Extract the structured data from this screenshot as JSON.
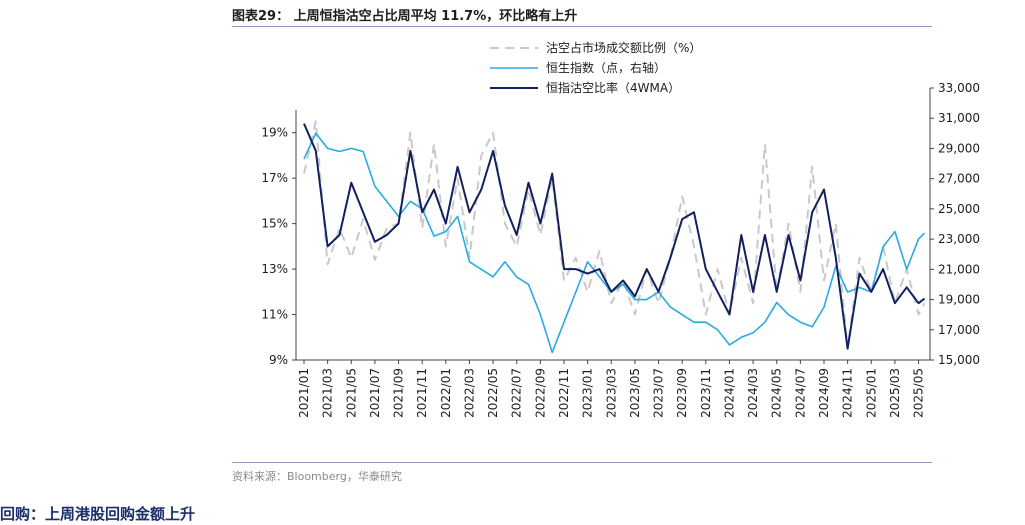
{
  "header": {
    "title": "图表29：  上周恒指沽空占比周平均 11.7%，环比略有上升"
  },
  "footer": {
    "source": "资料来源：Bloomberg，华泰研究",
    "next_heading": "回购：上周港股回购金额上升"
  },
  "colors": {
    "short_ratio": "#c9c9c9",
    "hsi": "#29abe2",
    "short_ratio_4wma": "#12205e",
    "axis": "#444444"
  },
  "chart_data": {
    "type": "line",
    "title": "",
    "x_tick_labels": [
      "2021/01",
      "2021/03",
      "2021/05",
      "2021/07",
      "2021/09",
      "2021/11",
      "2022/01",
      "2022/03",
      "2022/05",
      "2022/07",
      "2022/09",
      "2022/11",
      "2023/01",
      "2023/03",
      "2023/05",
      "2023/07",
      "2023/09",
      "2023/11",
      "2024/01",
      "2024/03",
      "2024/05",
      "2024/07",
      "2024/09",
      "2024/11",
      "2025/01",
      "2025/03",
      "2025/05"
    ],
    "left_axis": {
      "ylim": [
        9,
        20
      ],
      "tick_values": [
        9,
        11,
        13,
        15,
        17,
        19
      ],
      "tick_labels": [
        "9%",
        "11%",
        "13%",
        "15%",
        "17%",
        "19%"
      ]
    },
    "right_axis": {
      "ylim": [
        15000,
        33000
      ],
      "tick_values": [
        15000,
        17000,
        19000,
        21000,
        23000,
        25000,
        27000,
        29000,
        31000,
        33000
      ],
      "tick_labels": [
        "15,000",
        "17,000",
        "19,000",
        "21,000",
        "23,000",
        "25,000",
        "27,000",
        "29,000",
        "31,000",
        "33,000"
      ]
    },
    "legend_position": "top",
    "series": [
      {
        "name": "沽空占市场成交额比例（%）",
        "axis": "left",
        "style": "dashed",
        "points": [
          [
            "2021/01",
            17.2
          ],
          [
            "2021/02",
            19.5
          ],
          [
            "2021/03",
            13.2
          ],
          [
            "2021/04",
            14.8
          ],
          [
            "2021/05",
            13.5
          ],
          [
            "2021/06",
            15.2
          ],
          [
            "2021/07",
            13.4
          ],
          [
            "2021/08",
            14.8
          ],
          [
            "2021/09",
            15.0
          ],
          [
            "2021/10",
            19.0
          ],
          [
            "2021/11",
            14.8
          ],
          [
            "2021/12",
            18.5
          ],
          [
            "2022/01",
            14.0
          ],
          [
            "2022/02",
            17.0
          ],
          [
            "2022/03",
            13.5
          ],
          [
            "2022/04",
            18.0
          ],
          [
            "2022/05",
            19.0
          ],
          [
            "2022/06",
            15.0
          ],
          [
            "2022/07",
            14.0
          ],
          [
            "2022/08",
            16.5
          ],
          [
            "2022/09",
            14.5
          ],
          [
            "2022/10",
            17.0
          ],
          [
            "2022/11",
            12.5
          ],
          [
            "2022/12",
            13.5
          ],
          [
            "2023/01",
            12.0
          ],
          [
            "2023/02",
            13.8
          ],
          [
            "2023/03",
            11.5
          ],
          [
            "2023/04",
            12.5
          ],
          [
            "2023/05",
            11.0
          ],
          [
            "2023/06",
            13.0
          ],
          [
            "2023/07",
            11.5
          ],
          [
            "2023/08",
            13.5
          ],
          [
            "2023/09",
            16.2
          ],
          [
            "2023/10",
            14.0
          ],
          [
            "2023/11",
            11.0
          ],
          [
            "2023/12",
            13.0
          ],
          [
            "2024/01",
            11.0
          ],
          [
            "2024/02",
            13.5
          ],
          [
            "2024/03",
            11.5
          ],
          [
            "2024/04",
            18.5
          ],
          [
            "2024/05",
            12.0
          ],
          [
            "2024/06",
            15.0
          ],
          [
            "2024/07",
            12.0
          ],
          [
            "2024/08",
            17.5
          ],
          [
            "2024/09",
            12.5
          ],
          [
            "2024/10",
            15.0
          ],
          [
            "2024/11",
            9.5
          ],
          [
            "2024/12",
            13.5
          ],
          [
            "2025/01",
            12.0
          ],
          [
            "2025/02",
            14.0
          ],
          [
            "2025/03",
            11.5
          ],
          [
            "2025/04",
            13.0
          ],
          [
            "2025/05",
            11.0
          ],
          [
            "2025/05",
            11.5
          ]
        ]
      },
      {
        "name": "恒生指数（点，右轴）",
        "axis": "right",
        "style": "solid",
        "points": [
          [
            "2021/01",
            28300
          ],
          [
            "2021/02",
            30000
          ],
          [
            "2021/03",
            29000
          ],
          [
            "2021/04",
            28800
          ],
          [
            "2021/05",
            29000
          ],
          [
            "2021/06",
            28800
          ],
          [
            "2021/07",
            26500
          ],
          [
            "2021/08",
            25500
          ],
          [
            "2021/09",
            24500
          ],
          [
            "2021/10",
            25500
          ],
          [
            "2021/11",
            25000
          ],
          [
            "2021/12",
            23200
          ],
          [
            "2022/01",
            23500
          ],
          [
            "2022/02",
            24500
          ],
          [
            "2022/03",
            21500
          ],
          [
            "2022/04",
            21000
          ],
          [
            "2022/05",
            20500
          ],
          [
            "2022/06",
            21500
          ],
          [
            "2022/07",
            20500
          ],
          [
            "2022/08",
            20000
          ],
          [
            "2022/09",
            18000
          ],
          [
            "2022/10",
            15500
          ],
          [
            "2022/11",
            17500
          ],
          [
            "2022/12",
            19500
          ],
          [
            "2023/01",
            21500
          ],
          [
            "2023/02",
            20500
          ],
          [
            "2023/03",
            19500
          ],
          [
            "2023/04",
            20000
          ],
          [
            "2023/05",
            19000
          ],
          [
            "2023/06",
            19000
          ],
          [
            "2023/07",
            19500
          ],
          [
            "2023/08",
            18500
          ],
          [
            "2023/09",
            18000
          ],
          [
            "2023/10",
            17500
          ],
          [
            "2023/11",
            17500
          ],
          [
            "2023/12",
            17000
          ],
          [
            "2024/01",
            16000
          ],
          [
            "2024/02",
            16500
          ],
          [
            "2024/03",
            16800
          ],
          [
            "2024/04",
            17500
          ],
          [
            "2024/05",
            18800
          ],
          [
            "2024/06",
            18000
          ],
          [
            "2024/07",
            17500
          ],
          [
            "2024/08",
            17200
          ],
          [
            "2024/09",
            18500
          ],
          [
            "2024/10",
            21200
          ],
          [
            "2024/11",
            19500
          ],
          [
            "2024/12",
            19800
          ],
          [
            "2025/01",
            19500
          ],
          [
            "2025/02",
            22500
          ],
          [
            "2025/03",
            23500
          ],
          [
            "2025/04",
            21000
          ],
          [
            "2025/05",
            23000
          ],
          [
            "2025/05",
            23400
          ]
        ]
      },
      {
        "name": "恒指沽空比率（4WMA）",
        "axis": "left",
        "style": "solid",
        "points": [
          [
            "2021/01",
            19.4
          ],
          [
            "2021/02",
            18.2
          ],
          [
            "2021/03",
            14.0
          ],
          [
            "2021/04",
            14.5
          ],
          [
            "2021/05",
            16.8
          ],
          [
            "2021/06",
            15.5
          ],
          [
            "2021/07",
            14.2
          ],
          [
            "2021/08",
            14.5
          ],
          [
            "2021/09",
            15.0
          ],
          [
            "2021/10",
            18.2
          ],
          [
            "2021/11",
            15.5
          ],
          [
            "2021/12",
            16.5
          ],
          [
            "2022/01",
            15.0
          ],
          [
            "2022/02",
            17.5
          ],
          [
            "2022/03",
            15.5
          ],
          [
            "2022/04",
            16.5
          ],
          [
            "2022/05",
            18.2
          ],
          [
            "2022/06",
            15.8
          ],
          [
            "2022/07",
            14.5
          ],
          [
            "2022/08",
            16.8
          ],
          [
            "2022/09",
            15.0
          ],
          [
            "2022/10",
            17.2
          ],
          [
            "2022/11",
            13.0
          ],
          [
            "2022/12",
            13.0
          ],
          [
            "2023/01",
            12.8
          ],
          [
            "2023/02",
            13.0
          ],
          [
            "2023/03",
            12.0
          ],
          [
            "2023/04",
            12.5
          ],
          [
            "2023/05",
            11.8
          ],
          [
            "2023/06",
            13.0
          ],
          [
            "2023/07",
            12.0
          ],
          [
            "2023/08",
            13.5
          ],
          [
            "2023/09",
            15.2
          ],
          [
            "2023/10",
            15.5
          ],
          [
            "2023/11",
            13.0
          ],
          [
            "2023/12",
            12.0
          ],
          [
            "2024/01",
            11.0
          ],
          [
            "2024/02",
            14.5
          ],
          [
            "2024/03",
            12.0
          ],
          [
            "2024/04",
            14.5
          ],
          [
            "2024/05",
            12.0
          ],
          [
            "2024/06",
            14.5
          ],
          [
            "2024/07",
            12.5
          ],
          [
            "2024/08",
            15.5
          ],
          [
            "2024/09",
            16.5
          ],
          [
            "2024/10",
            13.5
          ],
          [
            "2024/11",
            9.5
          ],
          [
            "2024/12",
            12.8
          ],
          [
            "2025/01",
            12.0
          ],
          [
            "2025/02",
            13.0
          ],
          [
            "2025/03",
            11.5
          ],
          [
            "2025/04",
            12.2
          ],
          [
            "2025/05",
            11.5
          ],
          [
            "2025/05",
            11.7
          ]
        ]
      }
    ]
  }
}
